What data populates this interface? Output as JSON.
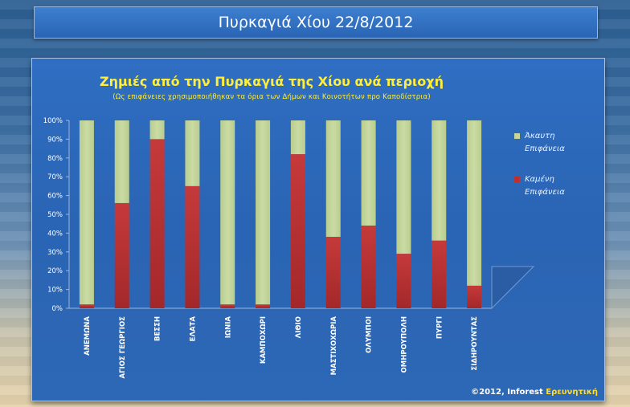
{
  "header": {
    "title": "Πυρκαγιά Χίου 22/8/2012"
  },
  "copyright": {
    "prefix": "©2012, Inforest ",
    "brand": "Ερευνητική"
  },
  "colors": {
    "unburned": "#c3d69b",
    "burned": "#b83234",
    "title": "#ffee3a"
  },
  "chart_data": {
    "type": "bar",
    "stacked": true,
    "title": "Ζημιές από την Πυρκαγιά της Χίου ανά περιοχή",
    "subtitle": "(Ως επιφάνειες χρησιμοποιήθηκαν τα όρια των Δήμων και Κοινοτήτων προ Καποδίστρια)",
    "categories": [
      "ΑΝΕΜΩΝΑ",
      "ΑΓΙΟΣ ΓΕΩΡΓΙΟΣ",
      "ΒΕΣΣΗ",
      "ΕΛΑΤΑ",
      "ΙΩΝΙΑ",
      "ΚΑΜΠΟΧΩΡΙ",
      "ΛΙΘΙΟ",
      "ΜΑΣΤΙΧΟΧΩΡΙΑ",
      "ΟΛΥΜΠΟΙ",
      "ΟΜΗΡΟΥΠΟΛΗ",
      "ΠΥΡΓΙ",
      "ΣΙΔΗΡΟΥΝΤΑΣ"
    ],
    "series": [
      {
        "name": "Καμένη Επιφάνεια",
        "values": [
          2,
          56,
          90,
          65,
          2,
          2,
          82,
          38,
          44,
          29,
          36,
          12
        ]
      },
      {
        "name": "Άκαυτη Επιφάνεια",
        "values": [
          98,
          44,
          10,
          35,
          98,
          98,
          18,
          62,
          56,
          71,
          64,
          88
        ]
      }
    ],
    "y_ticks": [
      "0%",
      "10%",
      "20%",
      "30%",
      "40%",
      "50%",
      "60%",
      "70%",
      "80%",
      "90%",
      "100%"
    ],
    "ylim": [
      0,
      100
    ],
    "legend_position": "right"
  }
}
